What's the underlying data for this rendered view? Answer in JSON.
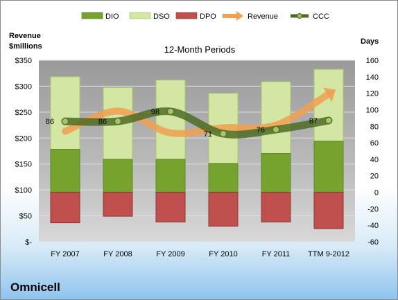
{
  "chart_data": {
    "type": "bar",
    "title": "12-Month Periods",
    "company": "Omnicell",
    "left_axis_label": [
      "Revenue",
      "$millions"
    ],
    "right_axis_label": "Days",
    "categories": [
      "FY 2007",
      "FY 2008",
      "FY 2009",
      "FY 2010",
      "FY 2011",
      "TTM 9-2012"
    ],
    "left_axis": {
      "min": 0,
      "max": 350,
      "step": 50,
      "tick_labels": [
        "$-",
        "$50",
        "$100",
        "$150",
        "$200",
        "$250",
        "$300",
        "$350"
      ]
    },
    "right_axis": {
      "min": -60,
      "max": 160,
      "step": 20,
      "tick_labels": [
        "-60",
        "-40",
        "-20",
        "0",
        "20",
        "40",
        "60",
        "80",
        "100",
        "120",
        "140",
        "160"
      ]
    },
    "series": [
      {
        "name": "DIO",
        "kind": "stacked-bar",
        "axis": "right",
        "color": "#76a32e",
        "values": [
          52,
          40,
          40,
          35,
          47,
          62
        ]
      },
      {
        "name": "DSO",
        "kind": "stacked-bar",
        "axis": "right",
        "color": "#d3e6a4",
        "values": [
          88,
          87,
          96,
          85,
          87,
          87
        ]
      },
      {
        "name": "DPO",
        "kind": "negative-bar",
        "axis": "right",
        "color": "#c0504d",
        "values": [
          -37,
          -29,
          -36,
          -41,
          -36,
          -44
        ]
      },
      {
        "name": "Revenue",
        "kind": "arrow-line",
        "axis": "left",
        "color": "#f0a050",
        "values": [
          213,
          252,
          210,
          220,
          225,
          285
        ]
      },
      {
        "name": "CCC",
        "kind": "line",
        "axis": "right",
        "color": "#4e6b25",
        "values": [
          86,
          86,
          98,
          71,
          76,
          87
        ],
        "labels": [
          "86",
          "86",
          "98",
          "71",
          "76",
          "87"
        ]
      }
    ],
    "grid": true,
    "legend_position": "top"
  }
}
